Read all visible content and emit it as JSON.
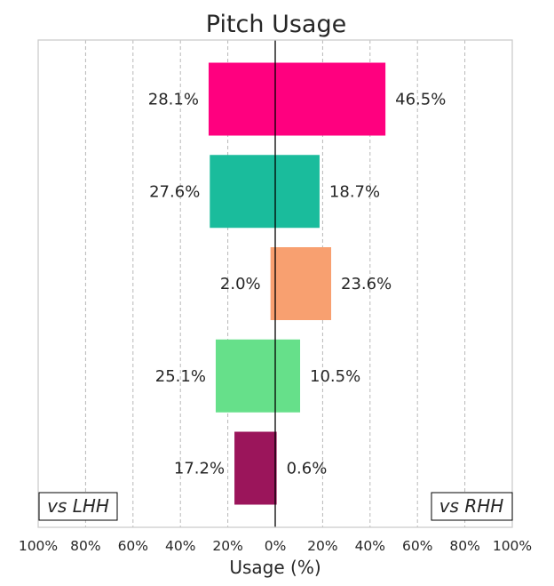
{
  "chart_data": {
    "type": "bar",
    "orientation": "horizontal-diverging",
    "title": "Pitch Usage",
    "xlabel": "Usage (%)",
    "ylabel": "",
    "xlim": [
      -100,
      100
    ],
    "xticks": [
      -100,
      -80,
      -60,
      -40,
      -20,
      0,
      20,
      40,
      60,
      80,
      100
    ],
    "xtick_labels": [
      "100%",
      "80%",
      "60%",
      "40%",
      "20%",
      "0%",
      "20%",
      "40%",
      "60%",
      "80%",
      "100%"
    ],
    "grid": "vertical-dashed",
    "left_label": "vs LHH",
    "right_label": "vs RHH",
    "categories": [
      "",
      "",
      "",
      "",
      ""
    ],
    "series": [
      {
        "side": "left",
        "values": [
          28.1,
          27.6,
          2.0,
          25.1,
          17.2
        ],
        "labels": [
          "28.1%",
          "27.6%",
          "2.0%",
          "25.1%",
          "17.2%"
        ]
      },
      {
        "side": "right",
        "values": [
          46.5,
          18.7,
          23.6,
          10.5,
          0.6
        ],
        "labels": [
          "46.5%",
          "18.7%",
          "23.6%",
          "10.5%",
          "0.6%"
        ]
      }
    ],
    "colors": [
      "#ff007f",
      "#1abc9c",
      "#f8a070",
      "#66e08a",
      "#9b155b"
    ]
  }
}
